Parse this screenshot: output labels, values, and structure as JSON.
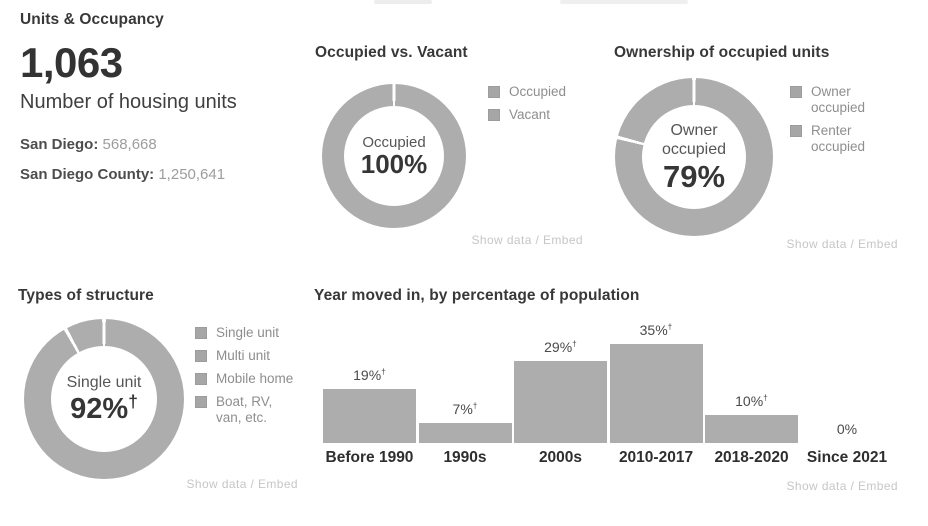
{
  "colors": {
    "chart_gray": "#adadad",
    "legend_text": "#8e8e8e",
    "link_text": "#c6c6c6",
    "title_text": "#383838"
  },
  "common": {
    "footer_link": "Show data / Embed",
    "dagger": "†"
  },
  "stats": {
    "section_title": "Units & Occupancy",
    "value": "1,063",
    "label": "Number of housing units",
    "comparisons": [
      {
        "label": "San Diego:",
        "value": "568,668"
      },
      {
        "label": "San Diego County:",
        "value": "1,250,641"
      }
    ]
  },
  "chart_data": [
    {
      "type": "pie",
      "title": "Occupied vs. Vacant",
      "legend_position": "right",
      "center": {
        "label": "Occupied",
        "value": "100%",
        "dagger": false
      },
      "slices": [
        {
          "label": "Occupied",
          "value": 100
        },
        {
          "label": "Vacant",
          "value": 0
        }
      ]
    },
    {
      "type": "pie",
      "title": "Ownership of occupied units",
      "legend_position": "right",
      "center": {
        "label": "Owner occupied",
        "value": "79%",
        "dagger": false
      },
      "slices": [
        {
          "label": "Owner occupied",
          "value": 79
        },
        {
          "label": "Renter occupied",
          "value": 21
        }
      ]
    },
    {
      "type": "pie",
      "title": "Types of structure",
      "legend_position": "right",
      "center": {
        "label": "Single unit",
        "value": "92%",
        "dagger": true
      },
      "slices": [
        {
          "label": "Single unit",
          "value": 92,
          "dagger": true
        },
        {
          "label": "Multi unit",
          "value": null
        },
        {
          "label": "Mobile home",
          "value": null
        },
        {
          "label": "Boat, RV, van, etc.",
          "value": null
        }
      ]
    },
    {
      "type": "bar",
      "title": "Year moved in, by percentage of population",
      "categories": [
        "Before 1990",
        "1990s",
        "2000s",
        "2010-2017",
        "2018-2020",
        "Since 2021"
      ],
      "values": [
        19,
        7,
        29,
        35,
        10,
        0
      ],
      "value_labels": [
        "19%",
        "7%",
        "29%",
        "35%",
        "10%",
        "0%"
      ],
      "daggers": [
        true,
        true,
        true,
        true,
        true,
        false
      ],
      "ylim": [
        0,
        35
      ],
      "grid": false,
      "legend": false
    }
  ]
}
